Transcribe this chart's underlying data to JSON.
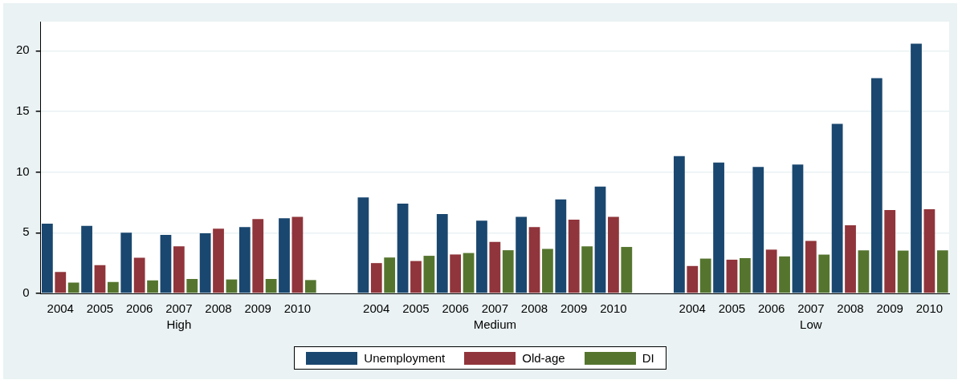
{
  "chart_data": {
    "type": "bar",
    "categories": [
      "2004",
      "2005",
      "2006",
      "2007",
      "2008",
      "2009",
      "2010",
      null,
      "2004",
      "2005",
      "2006",
      "2007",
      "2008",
      "2009",
      "2010",
      null,
      "2004",
      "2005",
      "2006",
      "2007",
      "2008",
      "2009",
      "2010"
    ],
    "series": [
      {
        "name": "Unemployment",
        "color": "#1a476f",
        "values": [
          5.75,
          5.56,
          5.0,
          4.83,
          4.96,
          5.46,
          6.19,
          null,
          7.92,
          7.4,
          6.54,
          6.0,
          6.31,
          7.75,
          8.81,
          null,
          11.32,
          10.78,
          10.43,
          10.63,
          13.98,
          17.74,
          20.58
        ]
      },
      {
        "name": "Old-age",
        "color": "#90353b",
        "values": [
          1.77,
          2.33,
          2.94,
          3.88,
          5.33,
          6.13,
          6.31,
          null,
          2.5,
          2.67,
          3.21,
          4.25,
          5.46,
          6.08,
          6.31,
          null,
          2.26,
          2.78,
          3.61,
          4.32,
          5.61,
          6.87,
          6.94
        ]
      },
      {
        "name": "DI",
        "color": "#55752f",
        "values": [
          0.9,
          0.94,
          1.08,
          1.19,
          1.15,
          1.19,
          1.1,
          null,
          2.96,
          3.1,
          3.33,
          3.56,
          3.67,
          3.88,
          3.83,
          null,
          2.87,
          2.91,
          3.05,
          3.2,
          3.55,
          3.53,
          3.55
        ]
      }
    ],
    "annotations": [
      "High",
      "Medium",
      "Low"
    ],
    "ylim": [
      0,
      22.4
    ],
    "yticks": [
      0,
      5,
      10,
      15,
      20
    ],
    "grid": "y",
    "legend": "bottom"
  }
}
